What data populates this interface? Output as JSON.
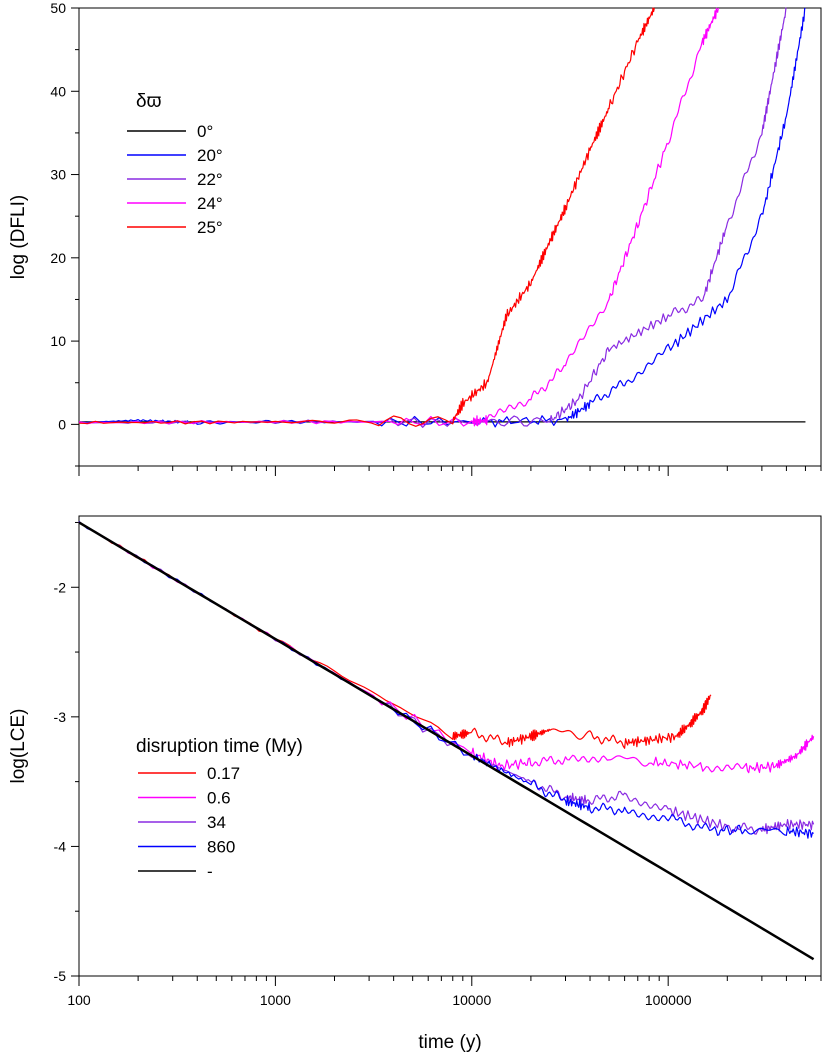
{
  "chart_data": [
    {
      "type": "line",
      "ylabel": "log (DFLI)",
      "xlim": [
        100,
        600000
      ],
      "x_scale": "log",
      "ylim": [
        -5,
        50
      ],
      "yticks": [
        0,
        10,
        20,
        30,
        40,
        50
      ],
      "legend": {
        "position": "top-left",
        "title": "δϖ",
        "entries": [
          "0°",
          "20°",
          "22°",
          "24°",
          "25°"
        ]
      },
      "series": [
        {
          "name": "0°",
          "color": "#000000",
          "x": [
            100,
            1000,
            10000,
            100000,
            500000
          ],
          "y": [
            0.3,
            0.3,
            0.3,
            0.3,
            0.3
          ]
        },
        {
          "name": "20°",
          "color": "#0000ff",
          "x": [
            100,
            200,
            400,
            1000,
            10000,
            30000,
            40000,
            60000,
            100000,
            200000,
            300000,
            400000,
            500000
          ],
          "y": [
            0.2,
            0.5,
            0.2,
            0.3,
            0.3,
            0.5,
            2.5,
            5,
            9,
            15,
            25,
            37,
            50
          ]
        },
        {
          "name": "22°",
          "color": "#8a2be2",
          "x": [
            100,
            1000,
            10000,
            25000,
            35000,
            50000,
            100000,
            150000,
            200000,
            300000,
            350000,
            400000
          ],
          "y": [
            0.2,
            0.3,
            0.3,
            0.4,
            3,
            9,
            13,
            15,
            24,
            35,
            43,
            50
          ]
        },
        {
          "name": "24°",
          "color": "#ff00ff",
          "x": [
            100,
            1000,
            10000,
            12000,
            20000,
            30000,
            50000,
            70000,
            100000,
            150000,
            180000
          ],
          "y": [
            0.2,
            0.3,
            0.3,
            0.5,
            3,
            7,
            15,
            24,
            34,
            46,
            50
          ]
        },
        {
          "name": "25°",
          "color": "#ff0000",
          "x": [
            100,
            1000,
            8000,
            9000,
            12000,
            15000,
            20000,
            25000,
            30000,
            40000,
            50000,
            70000,
            85000
          ],
          "y": [
            0.2,
            0.3,
            0.4,
            2.5,
            5,
            13,
            17,
            22,
            26,
            33,
            38,
            46,
            50
          ]
        }
      ]
    },
    {
      "type": "line",
      "xlabel": "time (y)",
      "ylabel": "log(LCE)",
      "xlim": [
        100,
        600000
      ],
      "x_scale": "log",
      "xticks": [
        100,
        1000,
        10000,
        100000
      ],
      "xtick_labels": [
        "100",
        "1000",
        "10000",
        "100000"
      ],
      "ylim": [
        -5,
        -1.45
      ],
      "yticks": [
        -5,
        -4,
        -3,
        -2
      ],
      "legend": {
        "position": "bottom-left",
        "title": "disruption time (My)",
        "entries": [
          "0.17",
          "0.6",
          "34",
          "860",
          "-"
        ]
      },
      "series": [
        {
          "name": "0.17",
          "color": "#ff0000",
          "x": [
            100,
            1000,
            8000,
            10000,
            15000,
            20000,
            25000,
            40000,
            60000,
            80000,
            110000,
            130000,
            150000,
            165000
          ],
          "y": [
            -1.5,
            -2.4,
            -3.15,
            -3.12,
            -3.2,
            -3.15,
            -3.1,
            -3.15,
            -3.2,
            -3.18,
            -3.15,
            -3.05,
            -2.95,
            -2.83
          ]
        },
        {
          "name": "0.6",
          "color": "#ff00ff",
          "x": [
            100,
            1000,
            10000,
            14000,
            20000,
            30000,
            50000,
            80000,
            150000,
            250000,
            350000,
            450000,
            550000
          ],
          "y": [
            -1.5,
            -2.4,
            -3.28,
            -3.38,
            -3.35,
            -3.33,
            -3.3,
            -3.35,
            -3.38,
            -3.4,
            -3.38,
            -3.3,
            -3.15
          ]
        },
        {
          "name": "34",
          "color": "#8a2be2",
          "x": [
            100,
            1000,
            10000,
            20000,
            30000,
            40000,
            60000,
            100000,
            200000,
            300000,
            400000,
            550000
          ],
          "y": [
            -1.5,
            -2.4,
            -3.3,
            -3.5,
            -3.62,
            -3.65,
            -3.6,
            -3.72,
            -3.85,
            -3.87,
            -3.83,
            -3.83
          ]
        },
        {
          "name": "860",
          "color": "#0000ff",
          "x": [
            100,
            1000,
            10000,
            20000,
            30000,
            40000,
            60000,
            100000,
            170000,
            250000,
            400000,
            550000
          ],
          "y": [
            -1.5,
            -2.4,
            -3.3,
            -3.52,
            -3.65,
            -3.7,
            -3.72,
            -3.78,
            -3.88,
            -3.87,
            -3.88,
            -3.9
          ]
        },
        {
          "name": "-",
          "color": "#000000",
          "x": [
            100,
            1000,
            10000,
            100000,
            550000
          ],
          "y": [
            -1.5,
            -2.4,
            -3.3,
            -4.2,
            -4.87
          ]
        }
      ]
    }
  ]
}
